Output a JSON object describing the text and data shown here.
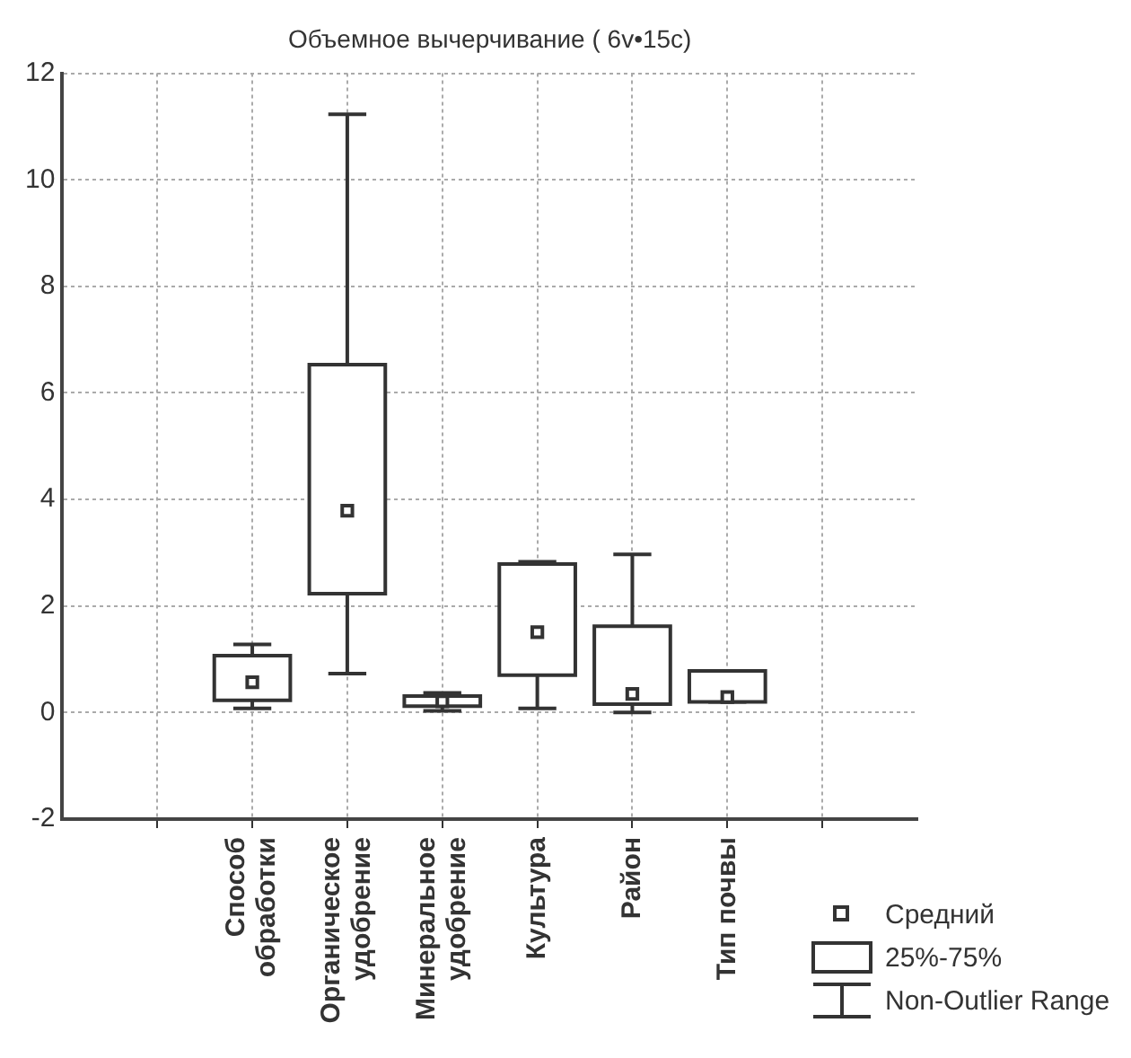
{
  "chart_data": {
    "type": "box",
    "title": "Объемное вычерчивание ( 6v•15c)",
    "categories": [
      null,
      "Способ обработки",
      "Органическое удобрение",
      "Минеральное удобрение",
      "Культура",
      "Район",
      "Тип почвы",
      null
    ],
    "boxes": [
      null,
      {
        "low": 0.08,
        "q1": 0.23,
        "q3": 1.07,
        "high": 1.28,
        "mean": 0.57
      },
      {
        "low": 0.73,
        "q1": 2.23,
        "q3": 6.53,
        "high": 11.23,
        "mean": 3.79
      },
      {
        "low": 0.03,
        "q1": 0.12,
        "q3": 0.31,
        "high": 0.37,
        "mean": 0.21
      },
      {
        "low": 0.08,
        "q1": 0.7,
        "q3": 2.79,
        "high": 2.83,
        "mean": 1.51
      },
      {
        "low": 0,
        "q1": 0.16,
        "q3": 1.62,
        "high": 2.97,
        "mean": 0.35
      },
      {
        "low": 0.2,
        "q1": 0.2,
        "q3": 0.78,
        "high": 0.78,
        "mean": 0.29
      },
      null
    ],
    "color": "#333333",
    "ylim": [
      -2,
      12
    ],
    "yticks": [
      -2,
      0,
      2,
      4,
      6,
      8,
      10,
      12
    ],
    "grid": true,
    "marker": "square",
    "annotations": [
      "Средний",
      "25%-75%",
      "Non-Outlier Range"
    ]
  }
}
